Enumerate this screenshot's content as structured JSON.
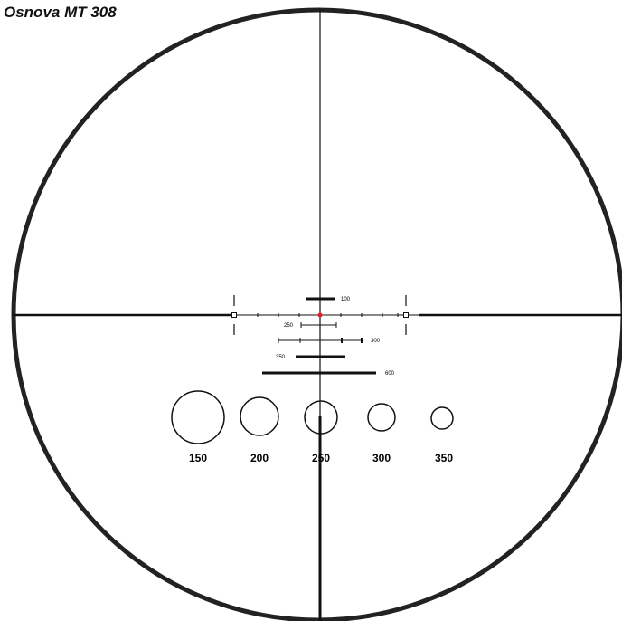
{
  "title": "Osnova MT 308",
  "range_marks": [
    {
      "label": "100"
    },
    {
      "label": "250"
    },
    {
      "label": "300"
    },
    {
      "label": "350"
    },
    {
      "label": "600"
    }
  ],
  "circles": [
    {
      "label": "150"
    },
    {
      "label": "200"
    },
    {
      "label": "250"
    },
    {
      "label": "300"
    },
    {
      "label": "350"
    }
  ]
}
